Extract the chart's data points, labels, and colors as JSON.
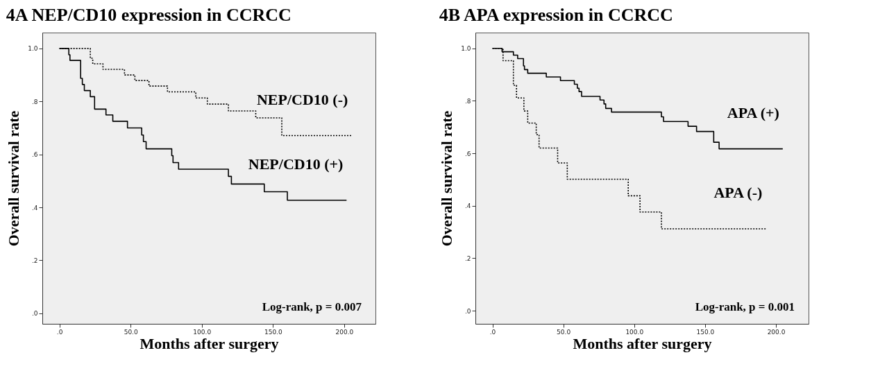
{
  "chart_data": [
    {
      "type": "step",
      "title": "4A  NEP/CD10 expression in CCRCC",
      "xlabel": "Months after surgery",
      "ylabel": "Overall survival rate",
      "xlim": [
        -12,
        222
      ],
      "ylim": [
        -0.04,
        1.06
      ],
      "xticks": [
        {
          "value": 0,
          "label": ".0"
        },
        {
          "value": 50,
          "label": "50.0"
        },
        {
          "value": 100,
          "label": "100.0"
        },
        {
          "value": 150,
          "label": "150.0"
        },
        {
          "value": 200,
          "label": "200.0"
        }
      ],
      "yticks": [
        {
          "value": 0,
          "label": ".0"
        },
        {
          "value": 0.2,
          "label": ".2"
        },
        {
          "value": 0.4,
          "label": ".4"
        },
        {
          "value": 0.6,
          "label": ".6"
        },
        {
          "value": 0.8,
          "label": ".8"
        },
        {
          "value": 1.0,
          "label": "1.0"
        }
      ],
      "annotations": [
        "Log-rank,  p = 0.007"
      ],
      "series": [
        {
          "name": "NEP/CD10 (-)",
          "color": "#000000",
          "line_style": "dotted",
          "x": [
            0,
            21.7,
            23.4,
            30.6,
            45.7,
            53,
            62.9,
            75.9,
            95.8,
            103.9,
            118.7,
            137.9,
            156.2,
            205.1
          ],
          "values": [
            1.0,
            0.963,
            0.942,
            0.921,
            0.9,
            0.879,
            0.858,
            0.836,
            0.813,
            0.79,
            0.764,
            0.738,
            0.671,
            0.671
          ]
        },
        {
          "name": "NEP/CD10 (+)",
          "color": "#000000",
          "line_style": "solid",
          "x": [
            0,
            6.6,
            7.4,
            14.9,
            16.1,
            17.5,
            21.7,
            24.7,
            32.7,
            37.5,
            47.8,
            57.8,
            59,
            60.9,
            78.9,
            79.8,
            83.7,
            118.7,
            120.8,
            143.9,
            160.1,
            201.7
          ],
          "values": [
            1.0,
            0.976,
            0.955,
            0.887,
            0.864,
            0.841,
            0.818,
            0.771,
            0.749,
            0.725,
            0.7,
            0.673,
            0.648,
            0.621,
            0.595,
            0.569,
            0.544,
            0.517,
            0.488,
            0.459,
            0.427,
            0.427
          ]
        }
      ]
    },
    {
      "type": "step",
      "title": "4B       APA expression in CCRCC",
      "xlabel": "Months after surgery",
      "ylabel": "Overall survival rate",
      "xlim": [
        -12,
        223
      ],
      "ylim": [
        -0.05,
        1.06
      ],
      "xticks": [
        {
          "value": 0,
          "label": ".0"
        },
        {
          "value": 50,
          "label": "50.0"
        },
        {
          "value": 100,
          "label": "100.0"
        },
        {
          "value": 150,
          "label": "150.0"
        },
        {
          "value": 200,
          "label": "200.0"
        }
      ],
      "yticks": [
        {
          "value": 0,
          "label": ".0"
        },
        {
          "value": 0.2,
          "label": ".2"
        },
        {
          "value": 0.4,
          "label": ".4"
        },
        {
          "value": 0.6,
          "label": ".6"
        },
        {
          "value": 0.8,
          "label": ".8"
        },
        {
          "value": 1.0,
          "label": "1.0"
        }
      ],
      "annotations": [
        "Log-rank,  p = 0.001"
      ],
      "series": [
        {
          "name": "APA (+)",
          "color": "#000000",
          "line_style": "solid",
          "x": [
            0,
            6.8,
            14.8,
            17.8,
            21.9,
            22.6,
            24.9,
            38,
            48,
            57.8,
            59.9,
            61.1,
            62.9,
            75.9,
            78.7,
            79.9,
            84,
            119.2,
            120.7,
            138,
            144,
            156.1,
            159.9,
            204.8
          ],
          "values": [
            1.0,
            0.987,
            0.974,
            0.961,
            0.933,
            0.919,
            0.905,
            0.891,
            0.877,
            0.863,
            0.848,
            0.835,
            0.817,
            0.803,
            0.788,
            0.771,
            0.757,
            0.739,
            0.721,
            0.703,
            0.683,
            0.642,
            0.617,
            0.617
          ]
        },
        {
          "name": "APA (-)",
          "color": "#000000",
          "line_style": "dotted",
          "x": [
            0,
            7.5,
            14.8,
            17,
            22.2,
            24.9,
            30.9,
            32.9,
            46,
            52.8,
            95.8,
            104.1,
            119.2,
            192.8
          ],
          "values": [
            1.0,
            0.953,
            0.859,
            0.811,
            0.761,
            0.715,
            0.671,
            0.62,
            0.563,
            0.501,
            0.438,
            0.376,
            0.312,
            0.312
          ]
        }
      ]
    }
  ]
}
